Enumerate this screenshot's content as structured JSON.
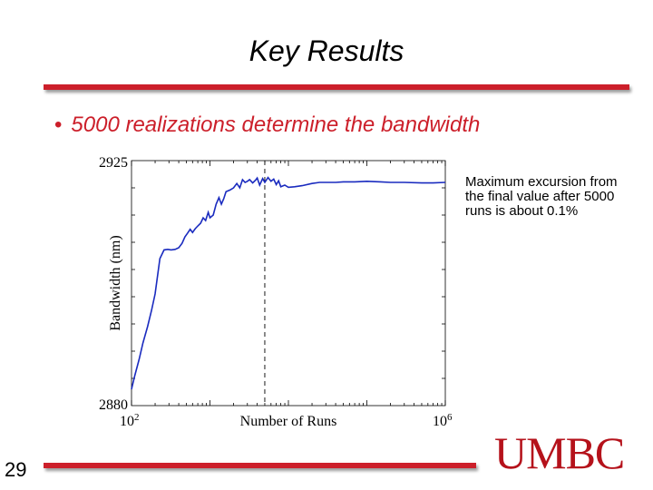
{
  "slide": {
    "title": "Key Results",
    "bullet": "5000 realizations determine the bandwidth",
    "note": "Maximum excursion from the final value after 5000 runs is about 0.1%",
    "slide_number": "29",
    "logo_text": "UMBC"
  },
  "colors": {
    "accent": "#cc1f2a",
    "series": "#1a2bbf",
    "logo": "#b5121b"
  },
  "chart_data": {
    "type": "line",
    "title": "",
    "xlabel": "Number of Runs",
    "ylabel": "Bandwidth (nm)",
    "xscale": "log",
    "xlim": [
      100,
      1000000
    ],
    "ylim": [
      2880,
      2925
    ],
    "x_tick_labels": [
      {
        "base": "10",
        "exp": "2"
      },
      {
        "base": "10",
        "exp": "6"
      }
    ],
    "y_tick_labels": [
      "2925",
      "2880"
    ],
    "grid": false,
    "reference_line": {
      "x": 5000,
      "style": "dashed"
    },
    "series": [
      {
        "x": [
          100,
          110,
          125,
          140,
          160,
          180,
          200,
          230,
          260,
          290,
          320,
          360,
          400,
          440,
          480,
          520,
          560,
          600,
          650,
          700,
          760,
          820,
          880,
          950,
          1000,
          1100,
          1200,
          1300,
          1400,
          1500,
          1600,
          1800,
          2000,
          2200,
          2400,
          2600,
          2800,
          3000,
          3200,
          3500,
          3800,
          4000,
          4300,
          4700,
          5000,
          5500,
          6000,
          6500,
          7000,
          7500,
          8000,
          9000,
          10000,
          12000,
          15000,
          20000,
          25000,
          30000,
          40000,
          50000,
          70000,
          100000,
          150000,
          200000,
          300000,
          500000,
          700000,
          1000000
        ],
        "y": [
          2883.0,
          2885.5,
          2888.5,
          2891.5,
          2894.5,
          2897.5,
          2900.5,
          2907.0,
          2908.6,
          2908.7,
          2908.6,
          2908.7,
          2909.0,
          2909.8,
          2911.0,
          2911.7,
          2912.4,
          2911.8,
          2912.5,
          2913.0,
          2913.5,
          2914.5,
          2914.0,
          2915.5,
          2914.5,
          2915.0,
          2917.0,
          2918.2,
          2917.0,
          2918.0,
          2919.3,
          2919.6,
          2920.0,
          2920.8,
          2920.0,
          2921.5,
          2921.0,
          2921.2,
          2921.5,
          2920.9,
          2921.4,
          2921.8,
          2920.5,
          2921.7,
          2921.0,
          2921.9,
          2921.2,
          2921.6,
          2920.6,
          2921.3,
          2920.2,
          2920.5,
          2920.1,
          2920.2,
          2920.4,
          2920.8,
          2921.0,
          2921.0,
          2921.0,
          2921.1,
          2921.1,
          2921.2,
          2921.1,
          2921.0,
          2921.0,
          2920.9,
          2920.9,
          2921.0
        ]
      }
    ]
  }
}
